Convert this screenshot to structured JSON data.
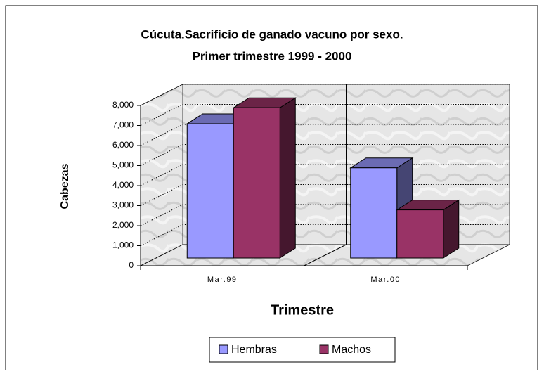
{
  "chart_data": {
    "type": "bar3d",
    "title": "Cúcuta.Sacrificio de ganado vacuno por sexo.",
    "subtitle": "Primer trimestre 1999 - 2000",
    "y_label": "Cabezas",
    "x_label": "Trimestre",
    "categories": [
      "Mar.99",
      "Mar.00"
    ],
    "series": [
      {
        "name": "Hembras",
        "color": "#9999ff",
        "values": [
          6700,
          4500
        ]
      },
      {
        "name": "Machos",
        "color": "#993366",
        "values": [
          7500,
          2400
        ]
      }
    ],
    "ylim": [
      0,
      8000
    ],
    "yticks": [
      {
        "value": 0,
        "label": "0"
      },
      {
        "value": 1000,
        "label": "1,000"
      },
      {
        "value": 2000,
        "label": "2,000"
      },
      {
        "value": 3000,
        "label": "3,000"
      },
      {
        "value": 4000,
        "label": "4,000"
      },
      {
        "value": 5000,
        "label": "5,000"
      },
      {
        "value": 6000,
        "label": "6,000"
      },
      {
        "value": 7000,
        "label": "7,000"
      },
      {
        "value": 8000,
        "label": "8,000"
      }
    ],
    "grid": true,
    "legend": "bottom"
  }
}
